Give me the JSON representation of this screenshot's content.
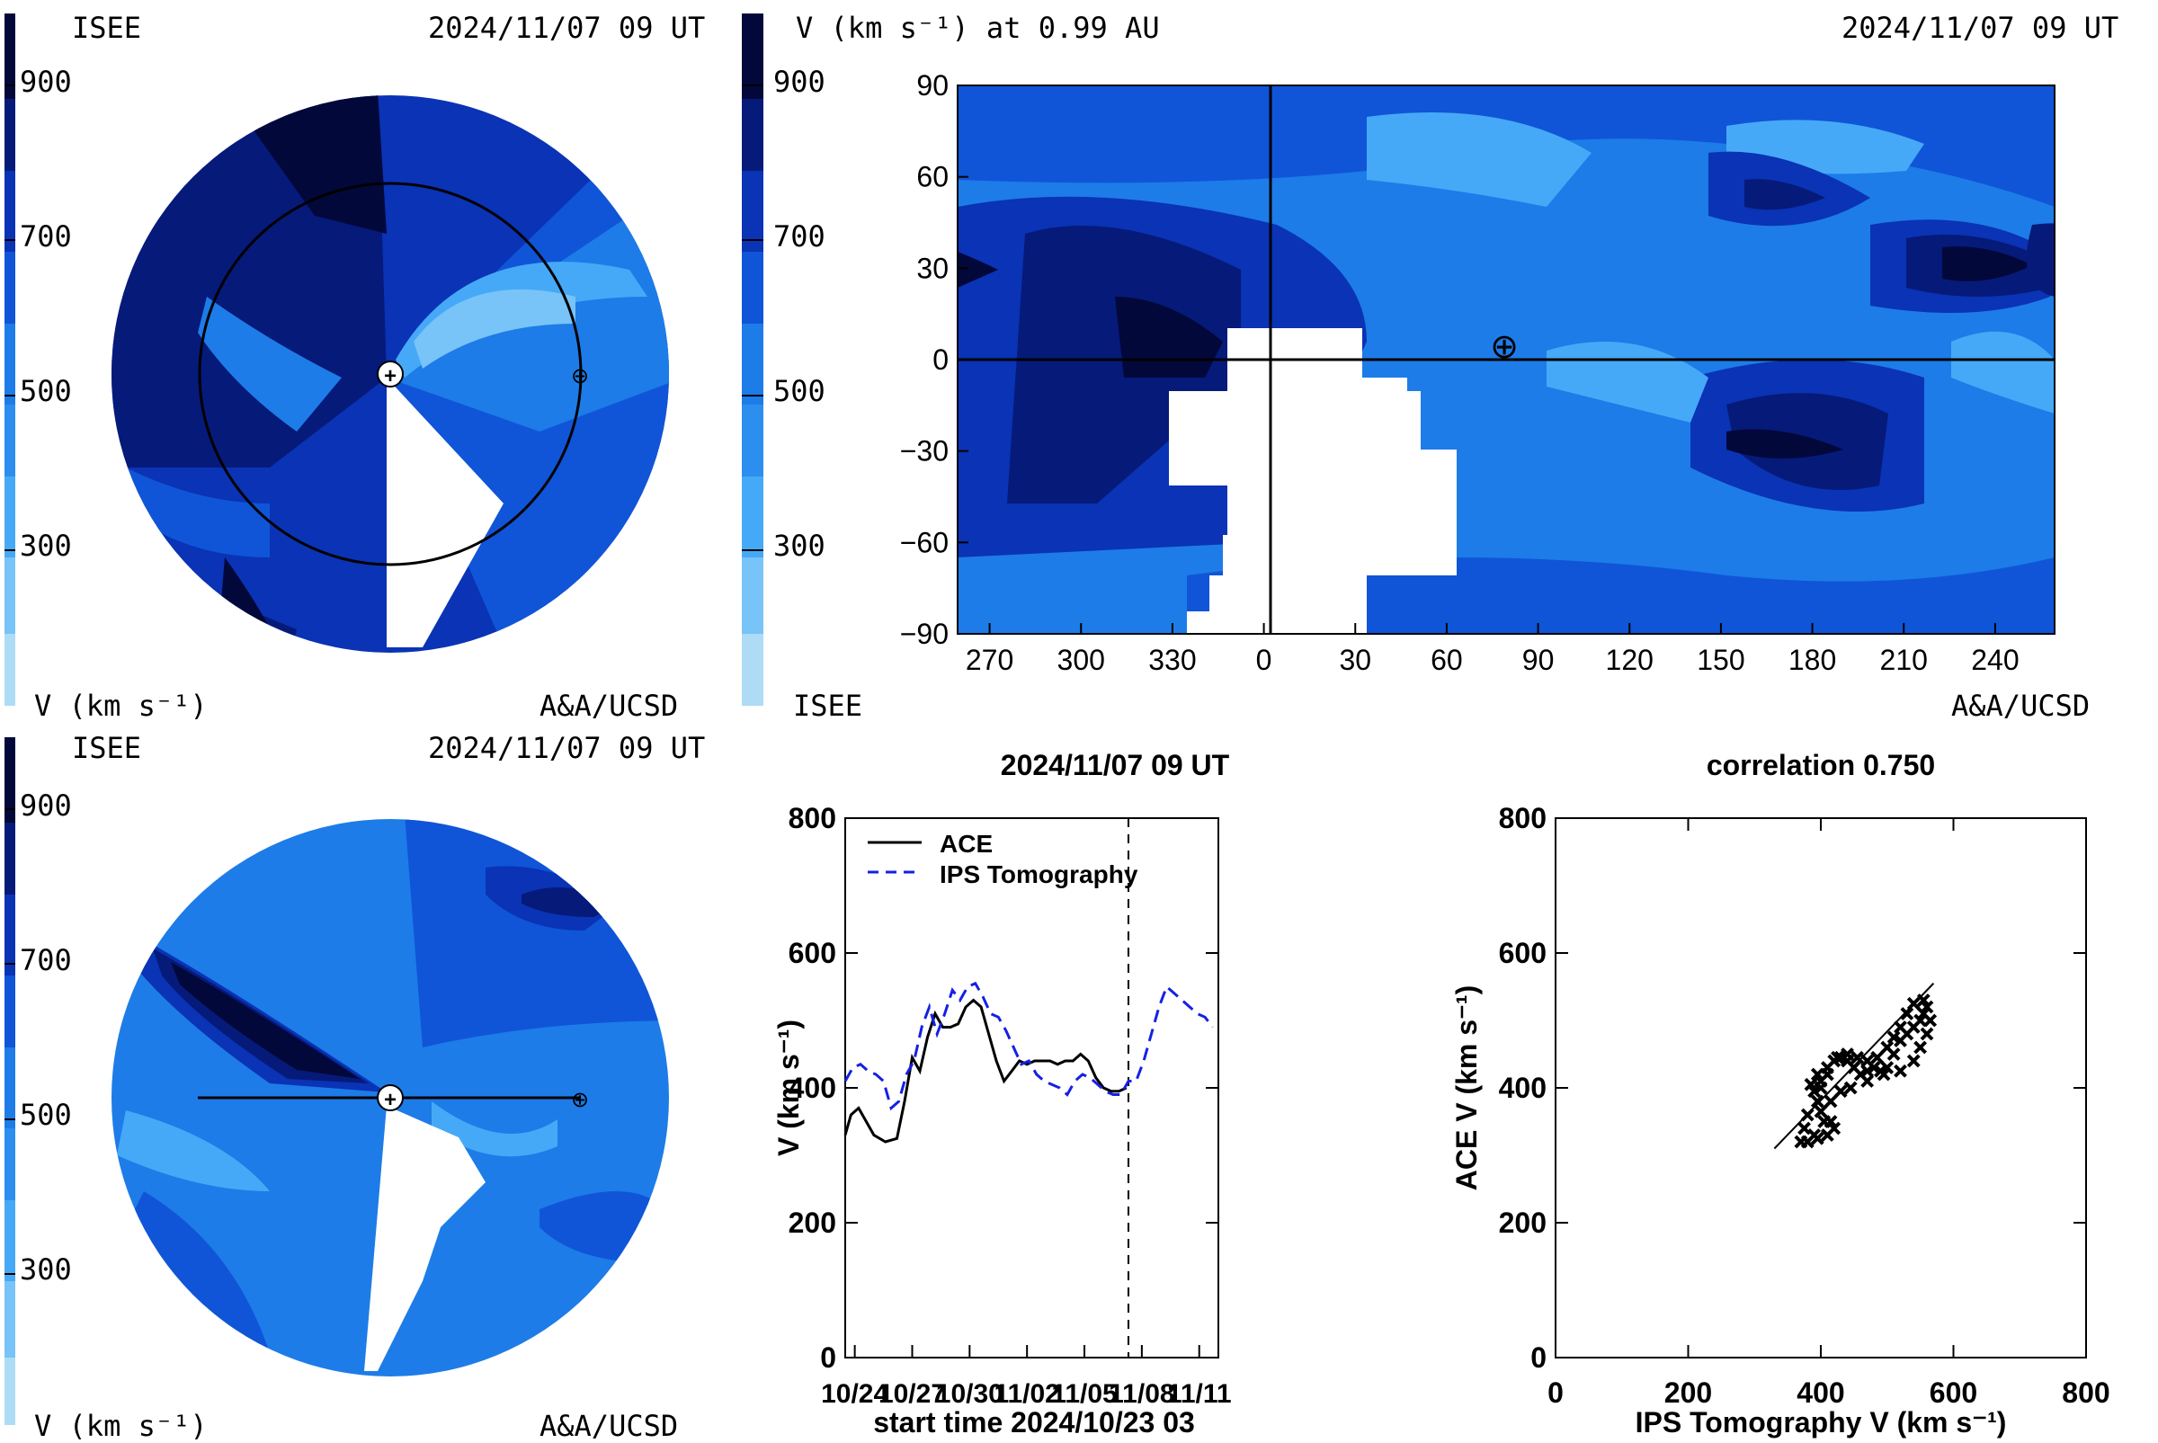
{
  "colors": {
    "levels": [
      "#aedcf6",
      "#46a9f7",
      "#1d7ce8",
      "#1055d8",
      "#0a33b5",
      "#061a7a",
      "#03083a"
    ],
    "ace": "#000000",
    "ips": "#1420e6"
  },
  "synoptic_top_left": {
    "label_left": "ISEE",
    "timestamp": "2024/11/07 09 UT",
    "cbar_ticks": [
      "900",
      "700",
      "500",
      "300"
    ],
    "units": "V (km s⁻¹)",
    "credit": "A&A/UCSD",
    "earth_symbol": "⊕",
    "sun_symbol": "+"
  },
  "synoptic_bottom_left": {
    "label_left": "ISEE",
    "timestamp": "2024/11/07 09 UT",
    "cbar_ticks": [
      "900",
      "700",
      "500",
      "300"
    ],
    "units": "V (km s⁻¹)",
    "credit": "A&A/UCSD",
    "earth_symbol": "⊕",
    "sun_symbol": "+"
  },
  "map_top_right": {
    "title": "V (km s⁻¹) at 0.99 AU",
    "timestamp": "2024/11/07 09 UT",
    "cbar_ticks": [
      "900",
      "700",
      "500",
      "300"
    ],
    "label_left": "ISEE",
    "credit": "A&A/UCSD",
    "y_ticks": [
      "90",
      "60",
      "30",
      "0",
      "−30",
      "−60",
      "−90"
    ],
    "x_ticks": [
      "270",
      "300",
      "330",
      "0",
      "30",
      "60",
      "90",
      "120",
      "150",
      "180",
      "210",
      "240"
    ],
    "earth_symbol": "⊕"
  },
  "chart_data": [
    {
      "type": "line",
      "title": "2024/11/07 09 UT",
      "xlabel": "start time 2024/10/23 03",
      "ylabel": "V (km s⁻¹)",
      "ylim": [
        0,
        800
      ],
      "xlim": [
        0.5,
        20
      ],
      "x_tick_labels": [
        "10/24",
        "10/27",
        "10/30",
        "11/02",
        "11/05",
        "11/08",
        "11/11"
      ],
      "y_tick_labels": [
        "0",
        "200",
        "400",
        "600",
        "800"
      ],
      "current_time_marker": 15.3,
      "legend": "top-left",
      "series": [
        {
          "name": "ACE",
          "style": "solid",
          "x": [
            0.5,
            0.8,
            1.2,
            1.6,
            2.0,
            2.6,
            3.2,
            3.6,
            4.0,
            4.4,
            4.8,
            5.2,
            5.6,
            6.0,
            6.4,
            6.8,
            7.2,
            7.6,
            8.0,
            8.4,
            8.8,
            9.2,
            9.6,
            10.0,
            10.4,
            10.8,
            11.2,
            11.6,
            12.0,
            12.4,
            12.8,
            13.2,
            13.6,
            14.0,
            14.4,
            14.8,
            15.2
          ],
          "y": [
            330,
            360,
            370,
            350,
            330,
            320,
            325,
            380,
            445,
            425,
            475,
            510,
            490,
            490,
            495,
            520,
            530,
            520,
            480,
            440,
            410,
            425,
            440,
            435,
            440,
            440,
            440,
            435,
            440,
            440,
            450,
            440,
            415,
            400,
            395,
            395,
            400
          ]
        },
        {
          "name": "IPS Tomography",
          "style": "dashed",
          "x": [
            0.5,
            0.9,
            1.3,
            1.7,
            2.1,
            2.5,
            2.9,
            3.3,
            3.7,
            4.1,
            4.5,
            4.9,
            5.3,
            5.7,
            6.1,
            6.5,
            6.9,
            7.3,
            7.7,
            8.1,
            8.5,
            8.9,
            9.3,
            9.7,
            10.1,
            10.5,
            10.9,
            11.3,
            11.7,
            12.1,
            12.5,
            12.9,
            13.3,
            13.7,
            14.1,
            14.5,
            14.9,
            15.3,
            15.7,
            16.1,
            16.5,
            16.9,
            17.3,
            17.7,
            18.1,
            18.5,
            18.9,
            19.3,
            19.7
          ],
          "y": [
            410,
            430,
            435,
            425,
            420,
            410,
            370,
            380,
            420,
            440,
            490,
            520,
            480,
            510,
            545,
            530,
            550,
            555,
            535,
            510,
            505,
            485,
            460,
            435,
            440,
            420,
            410,
            405,
            400,
            390,
            410,
            420,
            415,
            405,
            395,
            390,
            390,
            410,
            410,
            440,
            480,
            520,
            550,
            540,
            530,
            520,
            510,
            505,
            490
          ]
        }
      ]
    },
    {
      "type": "scatter",
      "title": "correlation 0.750",
      "xlabel": "IPS Tomography V (km s⁻¹)",
      "ylabel": "ACE V (km s⁻¹)",
      "xlim": [
        0,
        800
      ],
      "ylim": [
        0,
        800
      ],
      "x_tick_labels": [
        "0",
        "200",
        "400",
        "600",
        "800"
      ],
      "y_tick_labels": [
        "0",
        "200",
        "400",
        "600",
        "800"
      ],
      "points": [
        [
          370,
          320
        ],
        [
          380,
          320
        ],
        [
          395,
          325
        ],
        [
          410,
          330
        ],
        [
          420,
          340
        ],
        [
          415,
          350
        ],
        [
          400,
          365
        ],
        [
          395,
          380
        ],
        [
          390,
          395
        ],
        [
          400,
          410
        ],
        [
          410,
          430
        ],
        [
          420,
          440
        ],
        [
          430,
          445
        ],
        [
          440,
          440
        ],
        [
          450,
          430
        ],
        [
          460,
          420
        ],
        [
          470,
          425
        ],
        [
          480,
          430
        ],
        [
          490,
          425
        ],
        [
          500,
          430
        ],
        [
          510,
          450
        ],
        [
          520,
          470
        ],
        [
          530,
          480
        ],
        [
          540,
          490
        ],
        [
          550,
          500
        ],
        [
          555,
          510
        ],
        [
          560,
          520
        ],
        [
          555,
          530
        ],
        [
          540,
          525
        ],
        [
          530,
          510
        ],
        [
          520,
          490
        ],
        [
          510,
          475
        ],
        [
          500,
          460
        ],
        [
          485,
          445
        ],
        [
          470,
          440
        ],
        [
          455,
          445
        ],
        [
          440,
          450
        ],
        [
          425,
          445
        ],
        [
          410,
          420
        ],
        [
          400,
          400
        ],
        [
          395,
          420
        ],
        [
          385,
          405
        ],
        [
          380,
          360
        ],
        [
          375,
          340
        ],
        [
          390,
          330
        ],
        [
          405,
          350
        ],
        [
          415,
          380
        ],
        [
          430,
          395
        ],
        [
          445,
          400
        ],
        [
          470,
          410
        ],
        [
          495,
          420
        ],
        [
          520,
          425
        ],
        [
          540,
          440
        ],
        [
          550,
          460
        ],
        [
          560,
          480
        ],
        [
          565,
          500
        ]
      ],
      "fit_line": {
        "x": [
          330,
          570
        ],
        "y": [
          310,
          555
        ]
      }
    }
  ]
}
